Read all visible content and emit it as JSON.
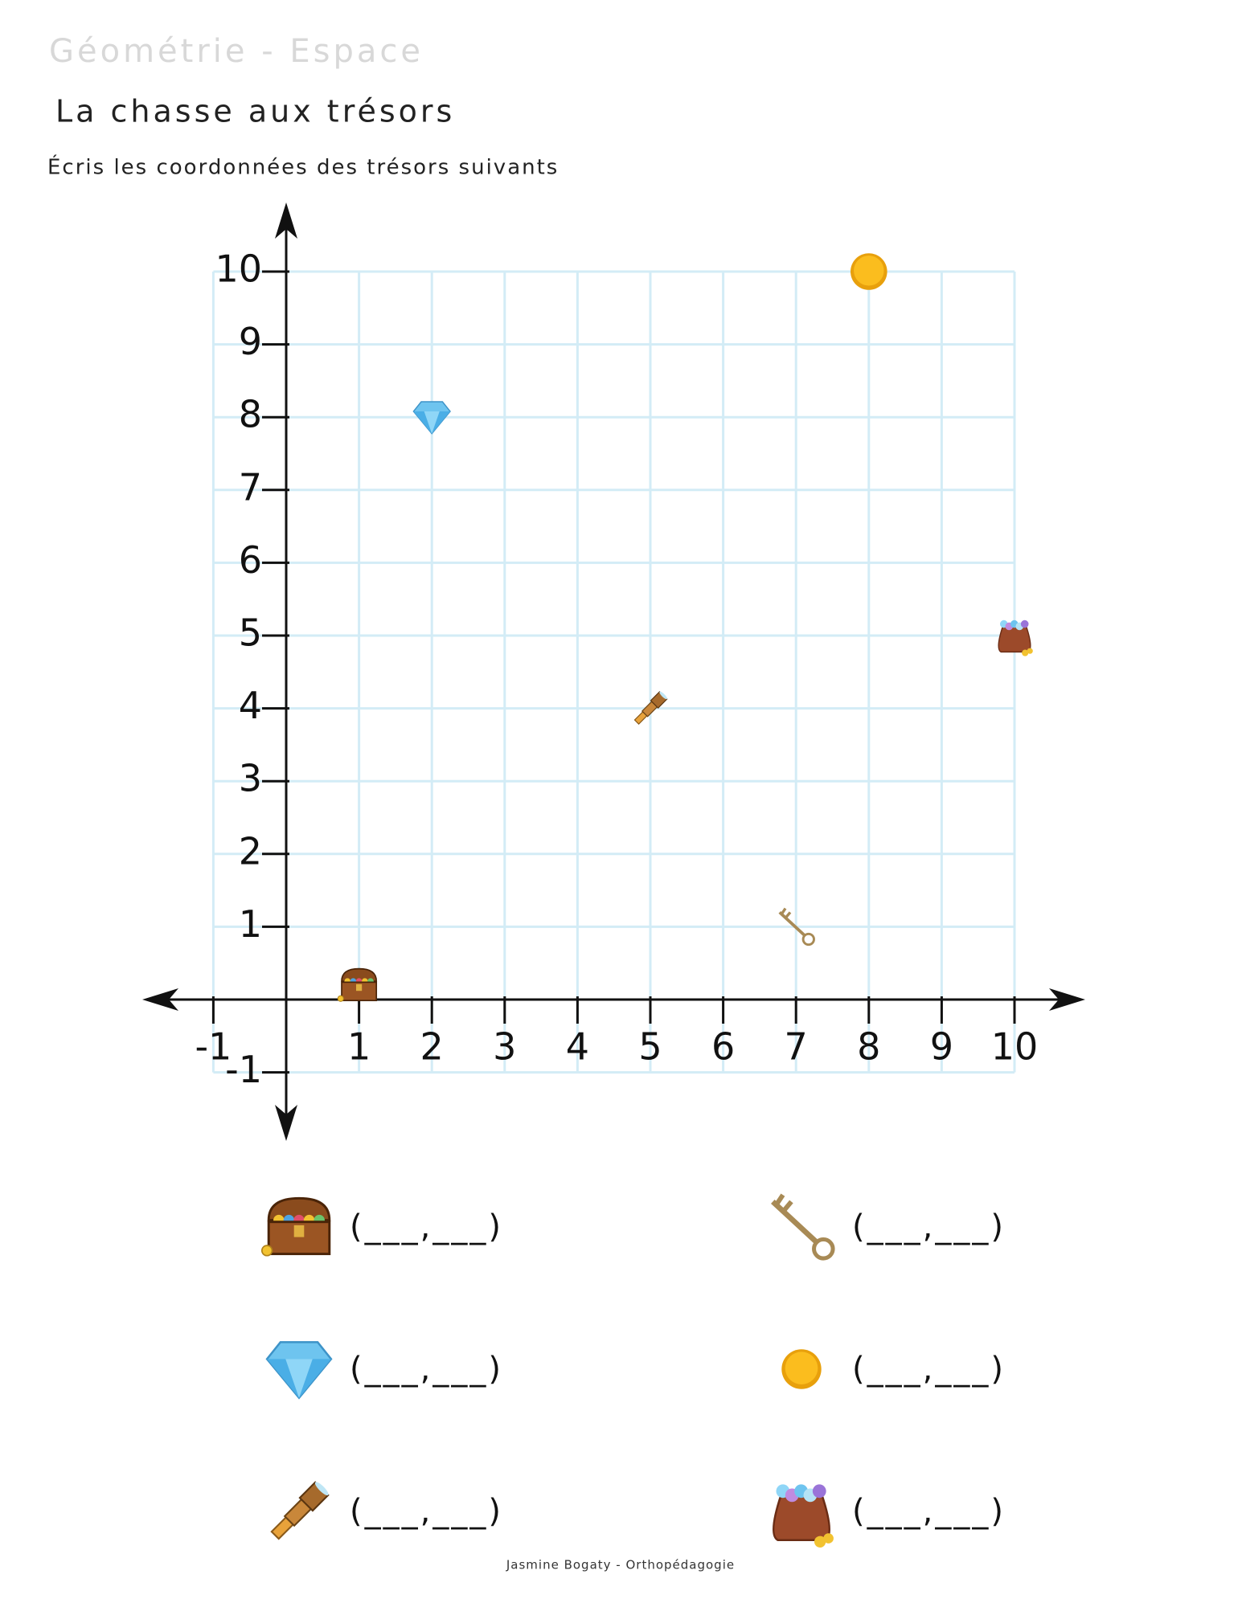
{
  "header": {
    "subject": "Géométrie - Espace",
    "title": "La chasse aux trésors",
    "instruction": "Écris les coordonnées des trésors suivants"
  },
  "graph": {
    "xlim": [
      -1,
      10
    ],
    "ylim": [
      -1,
      10
    ],
    "xticks": [
      -1,
      1,
      2,
      3,
      4,
      5,
      6,
      7,
      8,
      9,
      10
    ],
    "yticks": [
      -1,
      1,
      2,
      3,
      4,
      5,
      6,
      7,
      8,
      9,
      10
    ],
    "treasures": [
      {
        "x": 1,
        "y": 0
      },
      {
        "x": 2,
        "y": 8
      },
      {
        "x": 5,
        "y": 4
      },
      {
        "x": 7,
        "y": 1
      },
      {
        "x": 8,
        "y": 10
      },
      {
        "x": 10,
        "y": 5
      }
    ]
  },
  "answers": [
    "(___,___)",
    "(___,___)",
    "(___,___)",
    "(___,___)",
    "(___,___)",
    "(___,___)"
  ],
  "footer": "Jasmine Bogaty - Orthopédagogie"
}
